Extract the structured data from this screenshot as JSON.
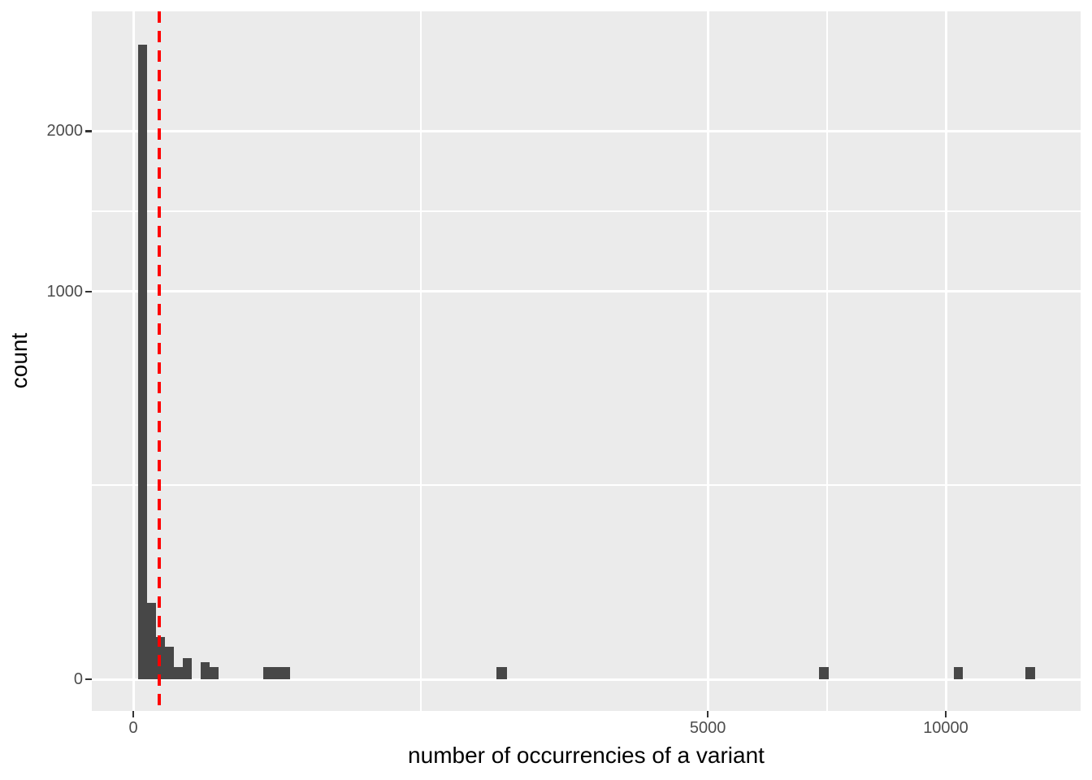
{
  "chart_data": {
    "type": "bar",
    "subtype": "histogram",
    "title": "",
    "xlabel": "number of occurrencies of a variant",
    "ylabel": "count",
    "x_scale": "sqrt",
    "y_scale": "sqrt",
    "x_ticks": [
      0,
      5000,
      10000
    ],
    "x_tick_labels": [
      "0",
      "5000",
      "10000"
    ],
    "y_ticks": [
      0,
      1000,
      2000
    ],
    "y_tick_labels": [
      "0",
      "1000",
      "2000"
    ],
    "x_minor_breaks": [
      1250,
      7285
    ],
    "y_minor_breaks": [
      250,
      1457
    ],
    "xlim_sqrt": [
      -5.1,
      116.6
    ],
    "ylim_sqrt": [
      -2.585,
      54.49
    ],
    "grid": true,
    "legend": "none",
    "bins": [
      {
        "x1": 0.36,
        "x2": 2.89,
        "count": 2680
      },
      {
        "x1": 2.89,
        "x2": 7.84,
        "count": 39
      },
      {
        "x1": 7.84,
        "x2": 15.21,
        "count": 12
      },
      {
        "x1": 15.21,
        "x2": 25,
        "count": 7
      },
      {
        "x1": 25,
        "x2": 37.21,
        "count": 1
      },
      {
        "x1": 37.21,
        "x2": 51.84,
        "count": 3
      },
      {
        "x1": 68.89,
        "x2": 88.36,
        "count": 2
      },
      {
        "x1": 88.36,
        "x2": 110.25,
        "count": 1
      },
      {
        "x1": 256,
        "x2": 292.41,
        "count": 1
      },
      {
        "x1": 292.41,
        "x2": 331.24,
        "count": 1
      },
      {
        "x1": 331.24,
        "x2": 372.49,
        "count": 1
      },
      {
        "x1": 1998,
        "x2": 2116,
        "count": 1
      },
      {
        "x1": 7123,
        "x2": 7327,
        "count": 1
      },
      {
        "x1": 10201,
        "x2": 10425,
        "count": 1
      },
      {
        "x1": 12056,
        "x2": 12321,
        "count": 1
      }
    ],
    "vline": {
      "x": 10,
      "style": "dashed",
      "color": "#FF0000",
      "width": 4,
      "dash": 14,
      "gap": 10
    },
    "colors": {
      "bar": "#474747",
      "panel_background": "#EBEBEB",
      "grid_major": "#FFFFFF",
      "grid_minor": "#FFFFFF",
      "tick_mark": "#333333",
      "tick_text": "#4D4D4D",
      "axis_title_text": "#000000",
      "outer_background": "#FFFFFF"
    }
  }
}
